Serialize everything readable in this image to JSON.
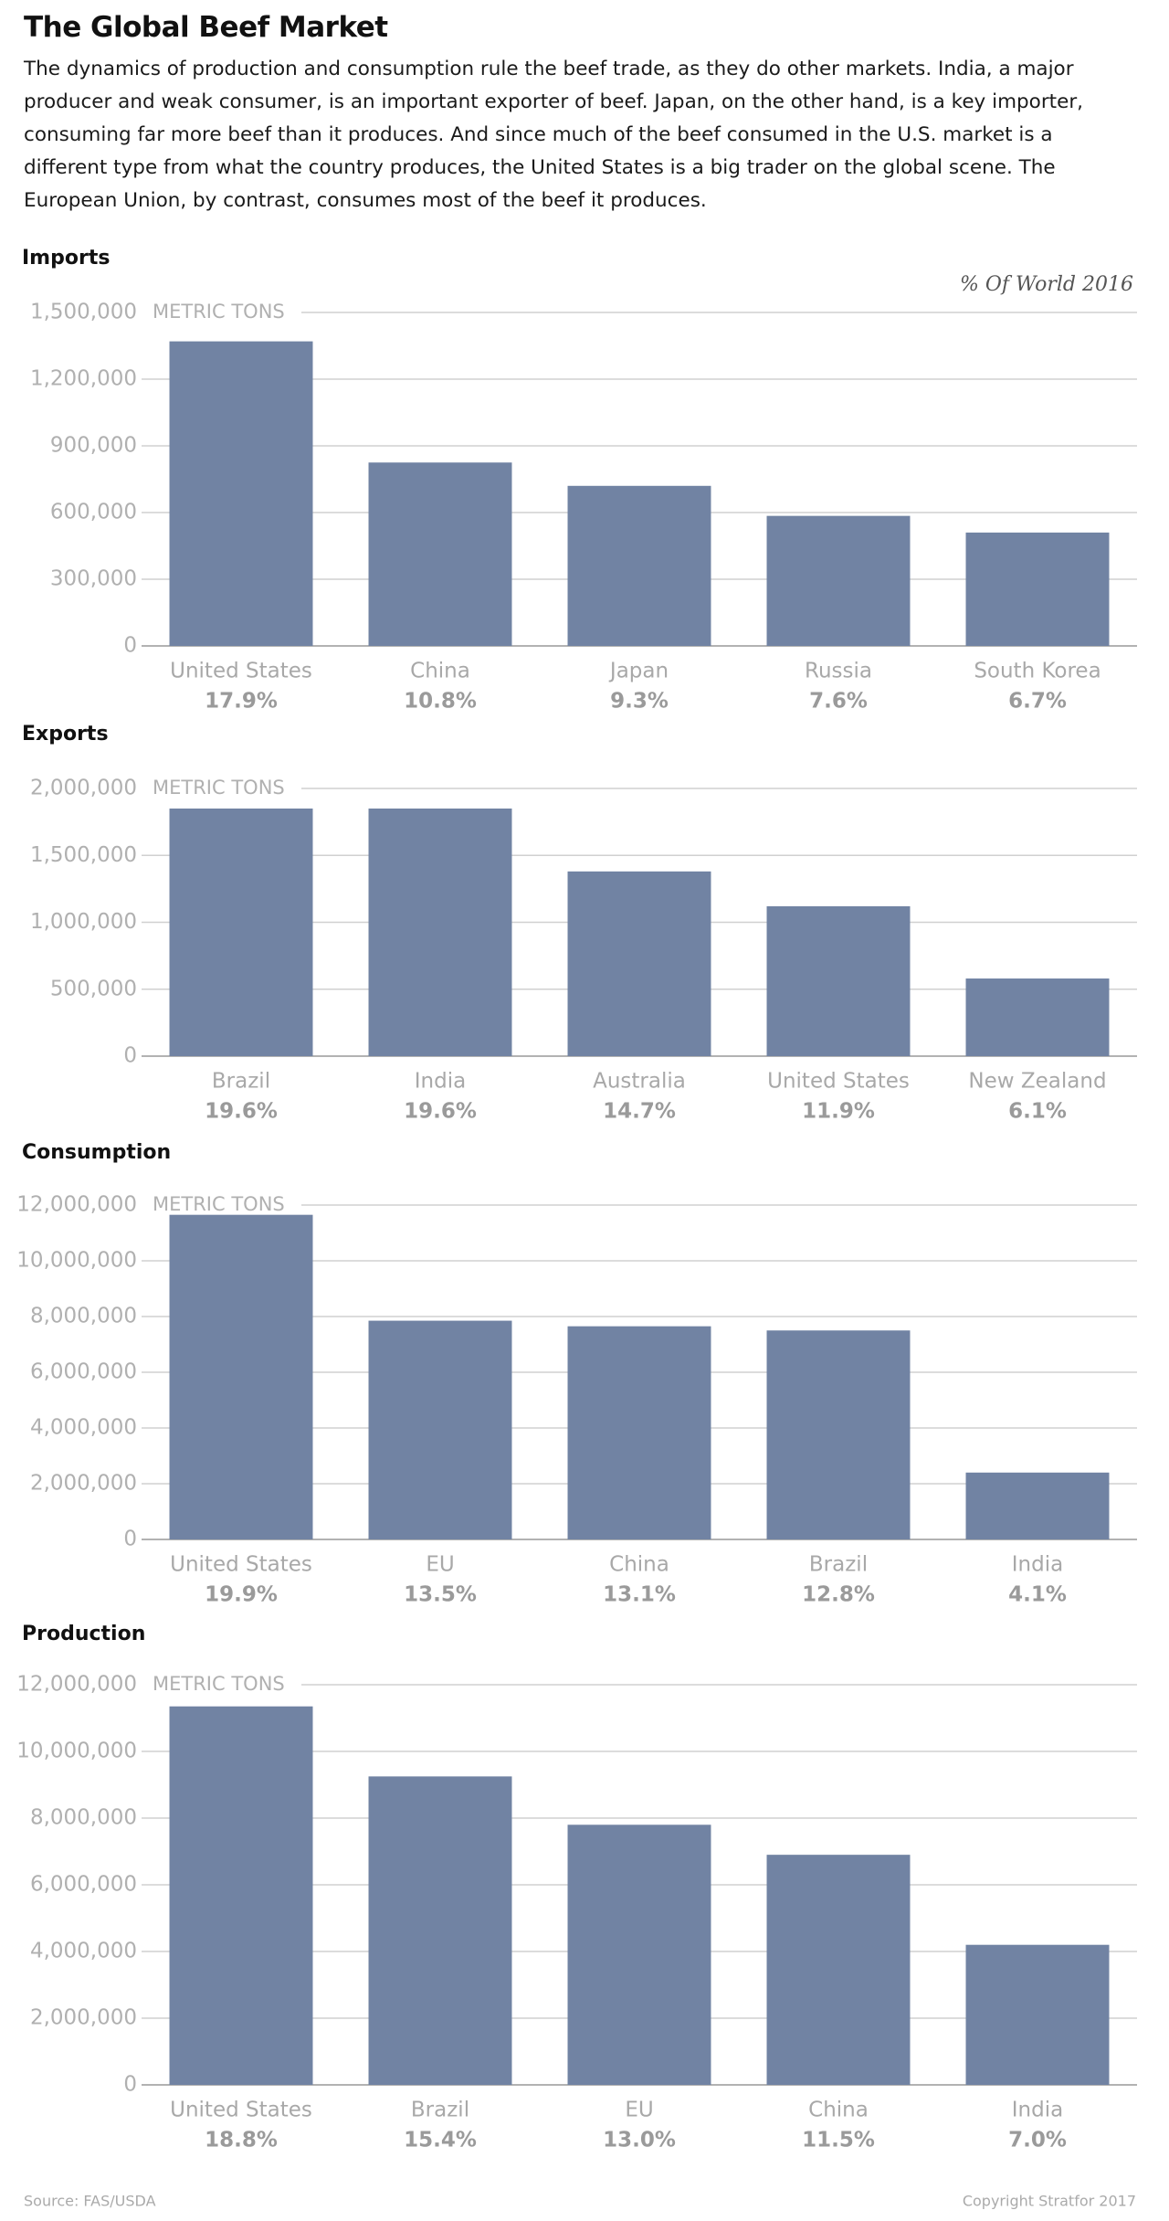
{
  "title": "The Global Beef Market",
  "description": "The dynamics of production and consumption rule the beef trade, as they do other markets. India, a major producer and weak consumer, is an important exporter of beef. Japan, on the other hand, is a key importer, consuming far more beef than it produces. And since much of the beef consumed in the U.S. market is a different type from what the country produces, the United States is a big trader on the global scene. The European Union, by contrast, consumes most of the beef it produces.",
  "note": "% Of World 2016",
  "source": "Source: FAS/USDA",
  "copyright": "Copyright Stratfor 2017",
  "chart_data": [
    {
      "type": "bar",
      "title": "Imports",
      "y_label": "METRIC TONS",
      "categories": [
        "United States",
        "China",
        "Japan",
        "Russia",
        "South Korea"
      ],
      "values": [
        1370000,
        825000,
        720000,
        585000,
        510000
      ],
      "shares": [
        "17.9%",
        "10.8%",
        "9.3%",
        "7.6%",
        "6.7%"
      ],
      "color": "#7183a3",
      "ylim": [
        0,
        1500000
      ],
      "yticks": [
        0,
        {
          "value": 300000,
          "label": "300,000"
        },
        {
          "value": 600000,
          "label": "600,000"
        },
        {
          "value": 900000,
          "label": "900,000"
        },
        {
          "value": 1200000,
          "label": "1,200,000"
        },
        {
          "value": 1500000,
          "label": "1,500,000"
        }
      ],
      "grid": true
    },
    {
      "type": "bar",
      "title": "Exports",
      "y_label": "METRIC TONS",
      "categories": [
        "Brazil",
        "India",
        "Australia",
        "United States",
        "New Zealand"
      ],
      "values": [
        1850000,
        1850000,
        1380000,
        1120000,
        580000
      ],
      "shares": [
        "19.6%",
        "19.6%",
        "14.7%",
        "11.9%",
        "6.1%"
      ],
      "color": "#7183a3",
      "ylim": [
        0,
        2000000
      ],
      "yticks": [
        0,
        {
          "value": 500000,
          "label": "500,000"
        },
        {
          "value": 1000000,
          "label": "1,000,000"
        },
        {
          "value": 1500000,
          "label": "1,500,000"
        },
        {
          "value": 2000000,
          "label": "2,000,000"
        }
      ],
      "grid": true
    },
    {
      "type": "bar",
      "title": "Consumption",
      "y_label": "METRIC TONS",
      "categories": [
        "United States",
        "EU",
        "China",
        "Brazil",
        "India"
      ],
      "values": [
        11650000,
        7850000,
        7650000,
        7500000,
        2400000
      ],
      "shares": [
        "19.9%",
        "13.5%",
        "13.1%",
        "12.8%",
        "4.1%"
      ],
      "color": "#7183a3",
      "ylim": [
        0,
        12000000
      ],
      "yticks": [
        0,
        {
          "value": 2000000,
          "label": "2,000,000"
        },
        {
          "value": 4000000,
          "label": "4,000,000"
        },
        {
          "value": 6000000,
          "label": "6,000,000"
        },
        {
          "value": 8000000,
          "label": "8,000,000"
        },
        {
          "value": 10000000,
          "label": "10,000,000"
        },
        {
          "value": 12000000,
          "label": "12,000,000"
        }
      ],
      "grid": true
    },
    {
      "type": "bar",
      "title": "Production",
      "y_label": "METRIC TONS",
      "categories": [
        "United States",
        "Brazil",
        "EU",
        "China",
        "India"
      ],
      "values": [
        11350000,
        9250000,
        7800000,
        6900000,
        4200000
      ],
      "shares": [
        "18.8%",
        "15.4%",
        "13.0%",
        "11.5%",
        "7.0%"
      ],
      "color": "#7183a3",
      "ylim": [
        0,
        12000000
      ],
      "yticks": [
        0,
        {
          "value": 2000000,
          "label": "2,000,000"
        },
        {
          "value": 4000000,
          "label": "4,000,000"
        },
        {
          "value": 6000000,
          "label": "6,000,000"
        },
        {
          "value": 8000000,
          "label": "8,000,000"
        },
        {
          "value": 10000000,
          "label": "10,000,000"
        },
        {
          "value": 12000000,
          "label": "12,000,000"
        }
      ],
      "grid": true
    }
  ]
}
